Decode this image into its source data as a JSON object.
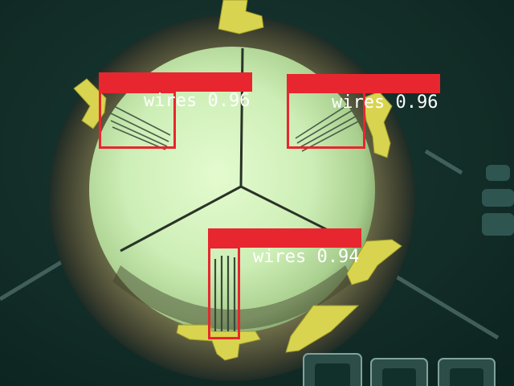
{
  "detections": [
    {
      "label": "wires",
      "score": "0.96"
    },
    {
      "label": "wires",
      "score": "0.96"
    },
    {
      "label": "wires",
      "score": "0.94"
    }
  ],
  "colors": {
    "background": "#0f2a26",
    "ring": "#4b4b32",
    "lens_glow": "#d4f2bf",
    "pads": "#d9d44f",
    "box": "#e8262f",
    "label_text": "#ffffff"
  }
}
